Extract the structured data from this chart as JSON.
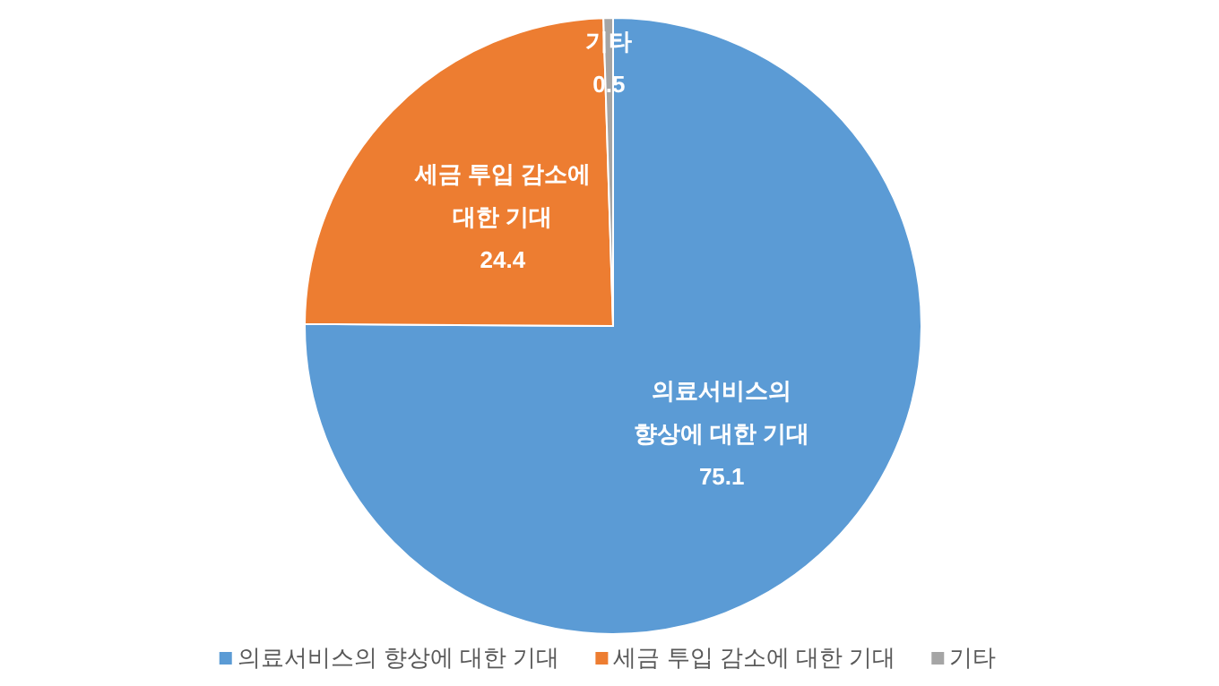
{
  "chart_data": {
    "type": "pie",
    "categories": [
      "의료서비스의 향상에 대한 기대",
      "세금 투입 감소에 대한 기대",
      "기타"
    ],
    "values": [
      75.1,
      24.4,
      0.5
    ],
    "colors": [
      "#5b9bd5",
      "#ed7d31",
      "#a5a5a5"
    ],
    "data_labels": true,
    "legend": "bottom"
  }
}
